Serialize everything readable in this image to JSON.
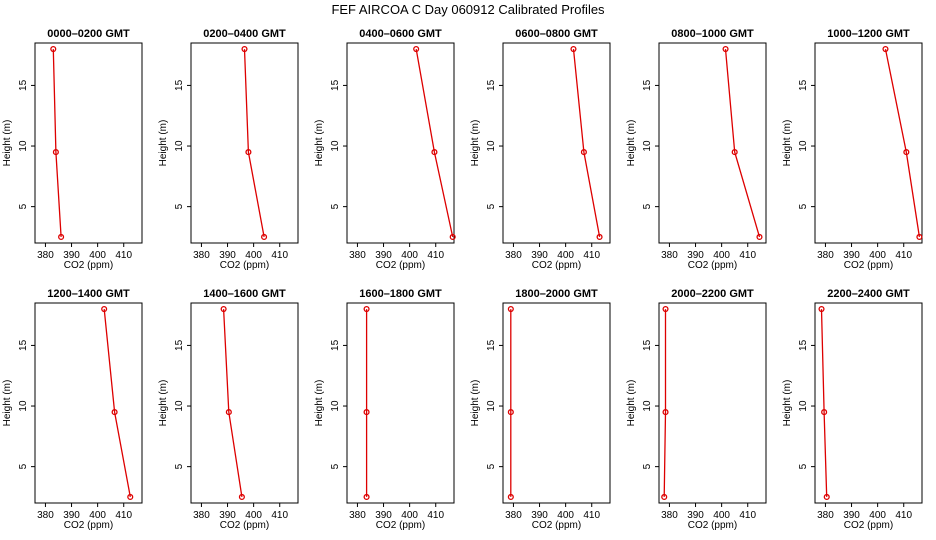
{
  "title": "FEF AIRCOA C  Day 060912  Calibrated Profiles",
  "chart_data": {
    "type": "line",
    "xlabel": "CO2 (ppm)",
    "ylabel": "Height (m)",
    "xlim": [
      376,
      417
    ],
    "ylim": [
      2,
      18.5
    ],
    "xticks": [
      380,
      390,
      400,
      410
    ],
    "yticks": [
      5,
      10,
      15
    ],
    "heights": [
      18,
      9.5,
      2.5
    ],
    "line_color": "#dd0000",
    "panels": [
      {
        "title": "0000–0200 GMT",
        "co2": [
          383.0,
          384.0,
          386.0
        ]
      },
      {
        "title": "0200–0400 GMT",
        "co2": [
          396.5,
          398.0,
          404.0
        ]
      },
      {
        "title": "0400–0600 GMT",
        "co2": [
          402.5,
          409.5,
          416.5
        ]
      },
      {
        "title": "0600–0800 GMT",
        "co2": [
          403.0,
          407.0,
          413.0
        ]
      },
      {
        "title": "0800–1000 GMT",
        "co2": [
          401.5,
          405.0,
          414.5
        ]
      },
      {
        "title": "1000–1200 GMT",
        "co2": [
          403.0,
          411.0,
          416.0
        ]
      },
      {
        "title": "1200–1400 GMT",
        "co2": [
          402.5,
          406.5,
          412.5
        ]
      },
      {
        "title": "1400–1600 GMT",
        "co2": [
          388.5,
          390.5,
          395.5
        ]
      },
      {
        "title": "1600–1800 GMT",
        "co2": [
          383.5,
          383.5,
          383.5
        ]
      },
      {
        "title": "1800–2000 GMT",
        "co2": [
          379.0,
          379.0,
          379.0
        ]
      },
      {
        "title": "2000–2200 GMT",
        "co2": [
          378.5,
          378.5,
          378.0
        ]
      },
      {
        "title": "2200–2400 GMT",
        "co2": [
          378.5,
          379.5,
          380.5
        ]
      }
    ]
  }
}
